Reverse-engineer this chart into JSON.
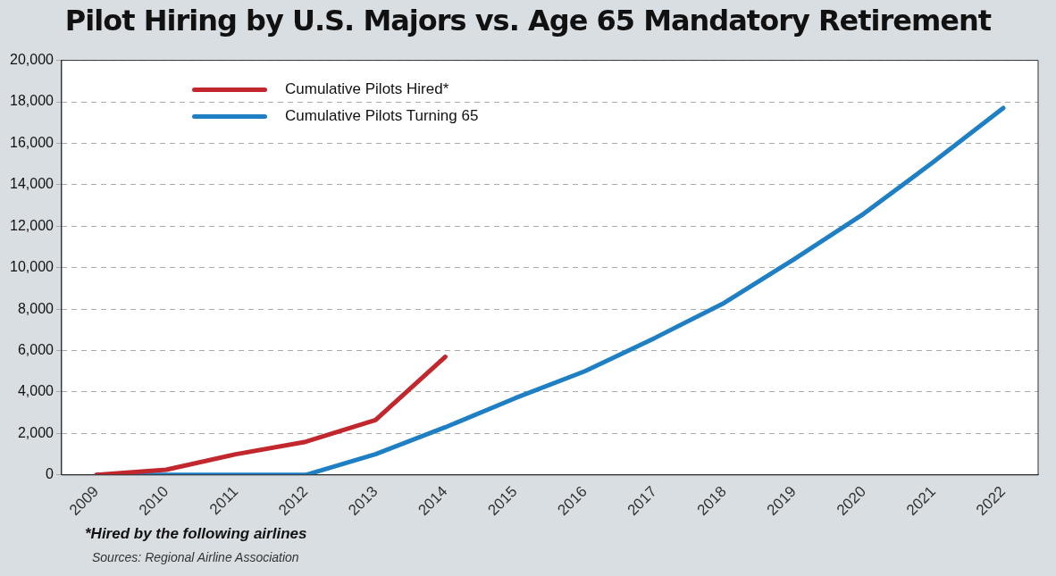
{
  "chart_data": {
    "type": "line",
    "title": "Pilot Hiring by U.S. Majors vs. Age 65 Mandatory Retirement",
    "categories": [
      "2009",
      "2010",
      "2011",
      "2012",
      "2013",
      "2014",
      "2015",
      "2016",
      "2017",
      "2018",
      "2019",
      "2020",
      "2021",
      "2022"
    ],
    "series": [
      {
        "name": "Cumulative Pilots Hired*",
        "color": "#c1272d",
        "values": [
          0,
          250,
          1000,
          1600,
          2650,
          5700,
          null,
          null,
          null,
          null,
          null,
          null,
          null,
          null
        ]
      },
      {
        "name": "Cumulative Pilots Turning 65",
        "color": "#1f7fc4",
        "values": [
          0,
          0,
          0,
          0,
          1000,
          2300,
          3700,
          5000,
          6600,
          8300,
          10400,
          12600,
          15100,
          17700
        ]
      }
    ],
    "ylim": [
      0,
      20000
    ],
    "yticks": [
      {
        "value": 0,
        "label": "0"
      },
      {
        "value": 2000,
        "label": "2,000"
      },
      {
        "value": 4000,
        "label": "4,000"
      },
      {
        "value": 6000,
        "label": "6,000"
      },
      {
        "value": 8000,
        "label": "8,000"
      },
      {
        "value": 10000,
        "label": "10,000"
      },
      {
        "value": 12000,
        "label": "12,000"
      },
      {
        "value": 14000,
        "label": "14,000"
      },
      {
        "value": 16000,
        "label": "16,000"
      },
      {
        "value": 18000,
        "label": "18,000"
      },
      {
        "value": 20000,
        "label": "20,000"
      }
    ],
    "grid": "y",
    "legend": "top left",
    "marker": "none",
    "line_style": "solid",
    "annotations": [
      "*Hired by the following airlines",
      "Sources: Regional Airline Association"
    ]
  }
}
